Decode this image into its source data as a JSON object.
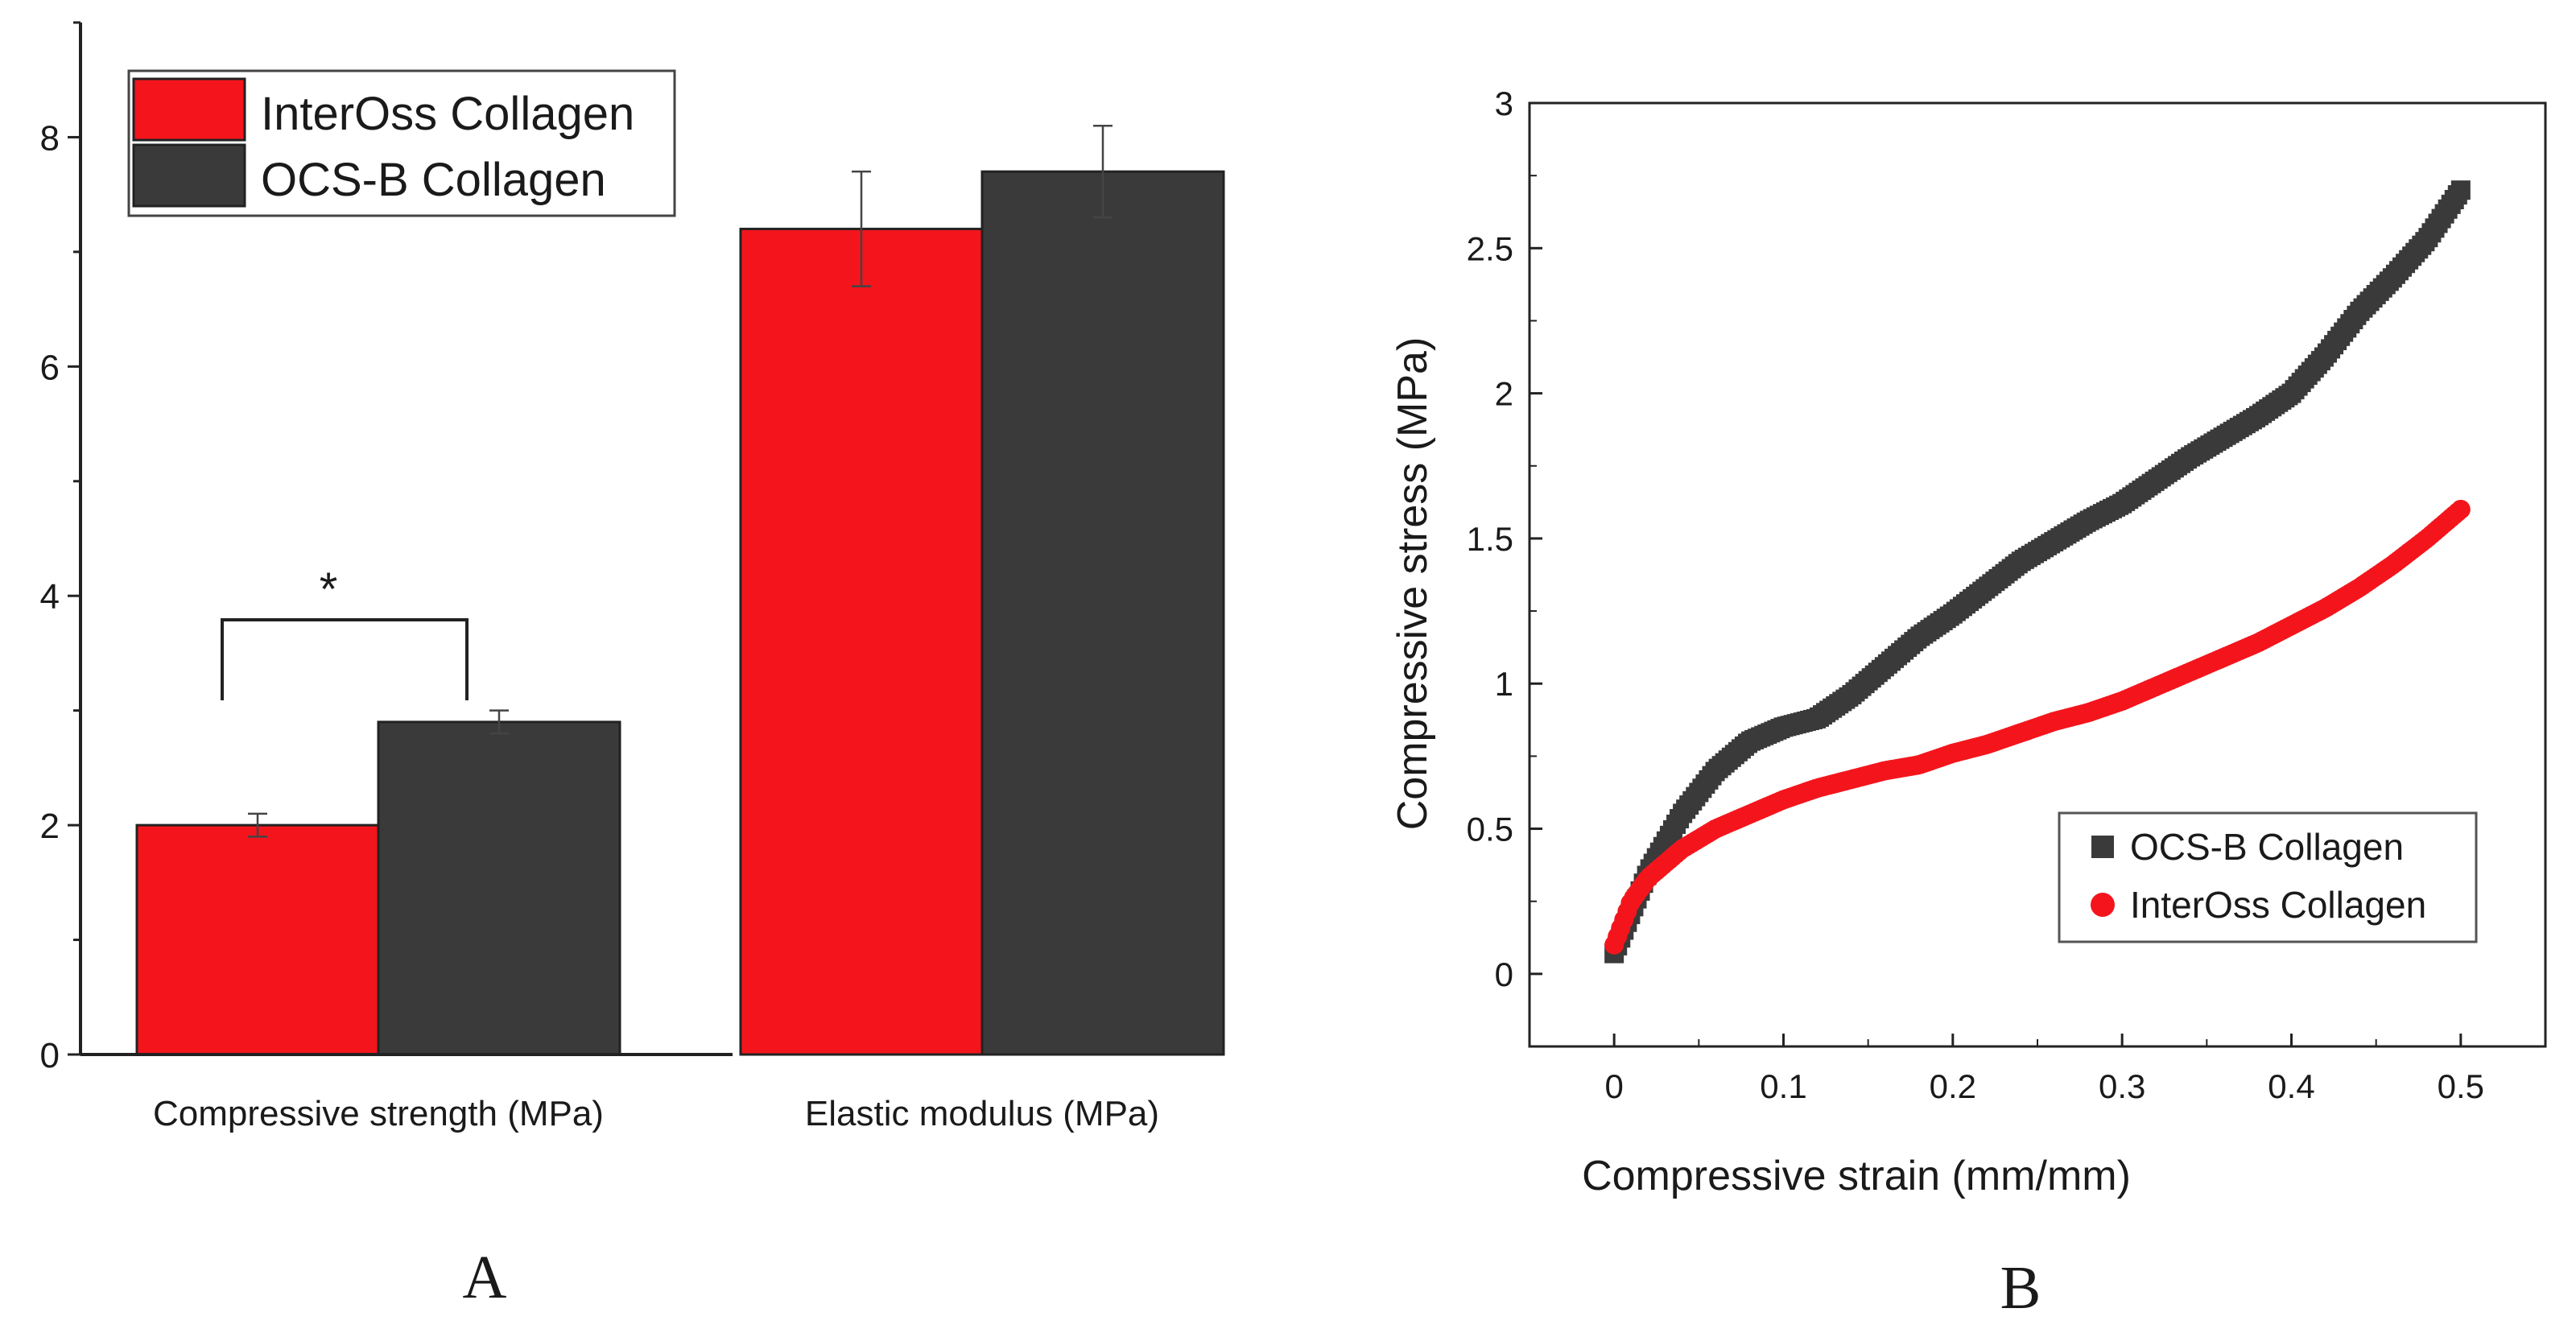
{
  "colors": {
    "inteross": "#f4151c",
    "ocsb": "#3a3a3a",
    "axis": "#222222"
  },
  "chart_data": [
    {
      "panel": "A",
      "type": "bar",
      "title": "",
      "xlabel": "",
      "ylabel": "",
      "categories": [
        "Compressive strength (MPa)",
        "Elastic modulus (MPa)"
      ],
      "series": [
        {
          "name": "InterOss Collagen",
          "color": "#f4151c",
          "values": [
            2.0,
            7.2
          ],
          "errors": [
            0.1,
            0.5
          ]
        },
        {
          "name": "OCS-B Collagen",
          "color": "#3a3a3a",
          "values": [
            2.9,
            7.7
          ],
          "errors": [
            0.1,
            0.4
          ]
        }
      ],
      "ylim": [
        0,
        9
      ],
      "yticks": [
        0,
        2,
        4,
        6,
        8
      ],
      "ytick_labels": [
        "0",
        "2",
        "4",
        "6",
        "8"
      ],
      "legend": {
        "placement": "top-left",
        "entries": [
          "InterOss Collagen",
          "OCS-B Collagen"
        ]
      },
      "annotations": [
        {
          "text": "*",
          "between": "InterOss Collagen vs OCS-B Collagen, Compressive strength"
        }
      ]
    },
    {
      "panel": "B",
      "type": "scatter",
      "title": "",
      "xlabel": "Compressive strain (mm/mm)",
      "ylabel": "Compressive stress (MPa)",
      "xlim": [
        -0.05,
        0.55
      ],
      "ylim": [
        -0.25,
        3.0
      ],
      "xticks": [
        0,
        0.1,
        0.2,
        0.3,
        0.4,
        0.5
      ],
      "xtick_labels": [
        "0",
        "0.1",
        "0.2",
        "0.3",
        "0.4",
        "0.5"
      ],
      "yticks": [
        0,
        0.5,
        1,
        1.5,
        2,
        2.5,
        3
      ],
      "ytick_labels": [
        "0",
        "0.5",
        "1",
        "1.5",
        "2",
        "2.5",
        "3"
      ],
      "series": [
        {
          "name": "OCS-B Collagen",
          "color": "#3a3a3a",
          "marker": "square",
          "x": [
            0,
            0.02,
            0.04,
            0.06,
            0.08,
            0.1,
            0.12,
            0.14,
            0.16,
            0.18,
            0.2,
            0.22,
            0.24,
            0.26,
            0.28,
            0.3,
            0.32,
            0.34,
            0.36,
            0.38,
            0.4,
            0.42,
            0.44,
            0.46,
            0.48,
            0.5
          ],
          "y": [
            0.07,
            0.35,
            0.55,
            0.7,
            0.8,
            0.85,
            0.88,
            0.96,
            1.06,
            1.16,
            1.24,
            1.33,
            1.42,
            1.49,
            1.56,
            1.62,
            1.7,
            1.78,
            1.85,
            1.92,
            2.0,
            2.13,
            2.28,
            2.4,
            2.53,
            2.7
          ]
        },
        {
          "name": "InterOss Collagen",
          "color": "#f4151c",
          "marker": "circle",
          "x": [
            0,
            0.01,
            0.02,
            0.04,
            0.06,
            0.08,
            0.1,
            0.12,
            0.14,
            0.16,
            0.18,
            0.2,
            0.22,
            0.24,
            0.26,
            0.28,
            0.3,
            0.32,
            0.34,
            0.36,
            0.38,
            0.4,
            0.42,
            0.44,
            0.46,
            0.48,
            0.5
          ],
          "y": [
            0.1,
            0.25,
            0.33,
            0.43,
            0.5,
            0.55,
            0.6,
            0.64,
            0.67,
            0.7,
            0.72,
            0.76,
            0.79,
            0.83,
            0.87,
            0.9,
            0.94,
            0.99,
            1.04,
            1.09,
            1.14,
            1.2,
            1.26,
            1.33,
            1.41,
            1.5,
            1.6
          ]
        }
      ],
      "legend": {
        "placement": "bottom-right",
        "entries": [
          "OCS-B Collagen",
          "InterOss Collagen"
        ]
      }
    }
  ],
  "panel_labels": {
    "a": "A",
    "b": "B"
  }
}
